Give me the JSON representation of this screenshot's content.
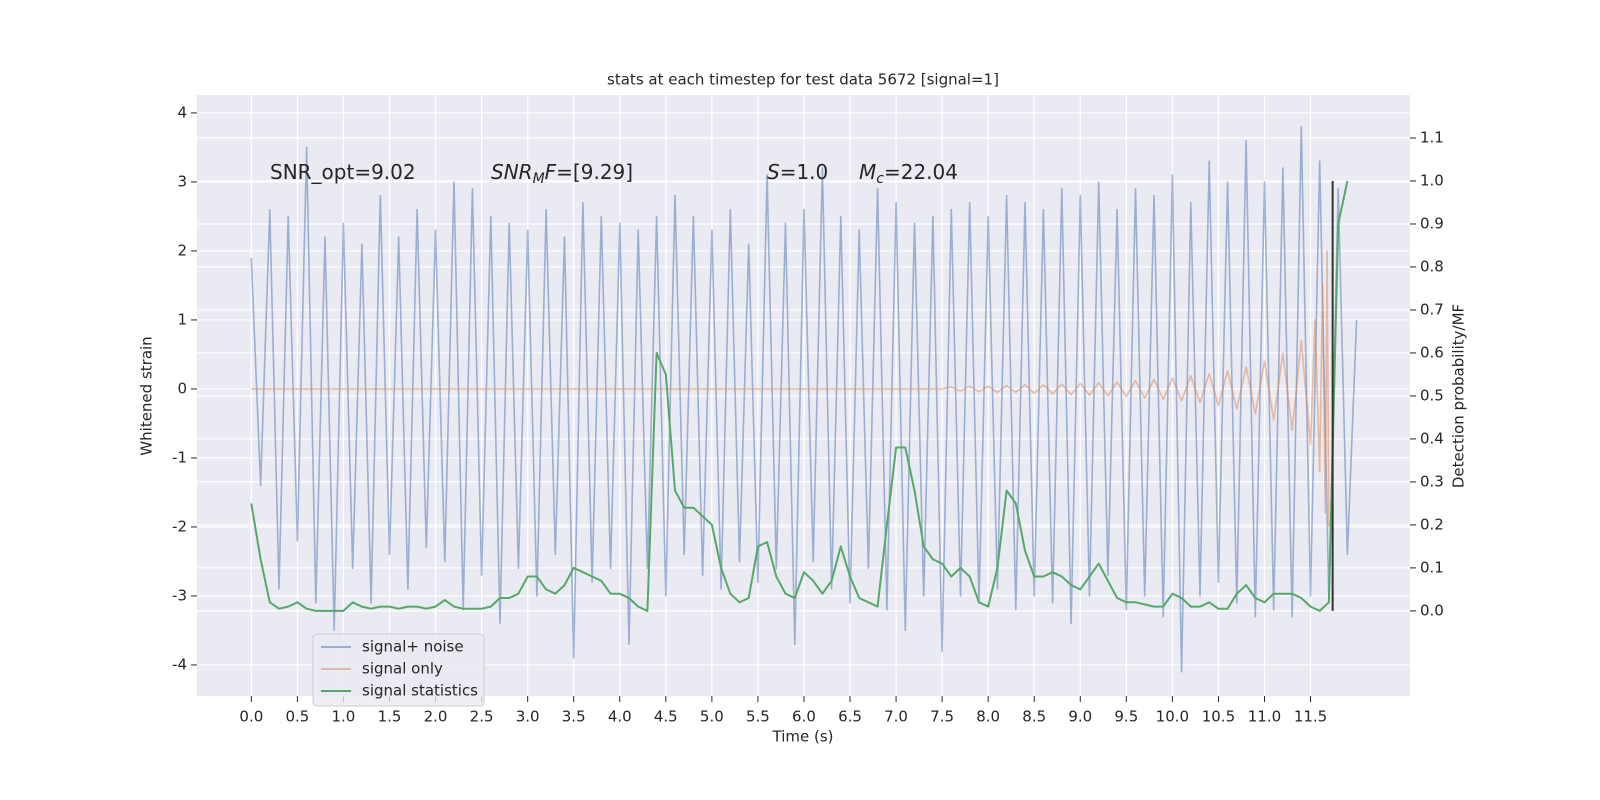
{
  "chart_data": {
    "type": "line",
    "title": "stats at each timestep for test data 5672 [signal=1]",
    "xlabel": "Time (s)",
    "ylabel": "Whitened strain",
    "y2label": "Detection probability/MF",
    "x": [
      0.0,
      0.1,
      0.2,
      0.3,
      0.4,
      0.5,
      0.6,
      0.7,
      0.8,
      0.9,
      1.0,
      1.1,
      1.2,
      1.3,
      1.4,
      1.5,
      1.6,
      1.7,
      1.8,
      1.9,
      2.0,
      2.1,
      2.2,
      2.3,
      2.4,
      2.5,
      2.6,
      2.7,
      2.8,
      2.9,
      3.0,
      3.1,
      3.2,
      3.3,
      3.4,
      3.5,
      3.6,
      3.7,
      3.8,
      3.9,
      4.0,
      4.1,
      4.2,
      4.3,
      4.4,
      4.5,
      4.6,
      4.7,
      4.8,
      4.9,
      5.0,
      5.1,
      5.2,
      5.3,
      5.4,
      5.5,
      5.6,
      5.7,
      5.8,
      5.9,
      6.0,
      6.1,
      6.2,
      6.3,
      6.4,
      6.5,
      6.6,
      6.7,
      6.8,
      6.9,
      7.0,
      7.1,
      7.2,
      7.3,
      7.4,
      7.5,
      7.6,
      7.7,
      7.8,
      7.9,
      8.0,
      8.1,
      8.2,
      8.3,
      8.4,
      8.5,
      8.6,
      8.7,
      8.8,
      8.9,
      9.0,
      9.1,
      9.2,
      9.3,
      9.4,
      9.5,
      9.6,
      9.7,
      9.8,
      9.9,
      10.0,
      10.1,
      10.2,
      10.3,
      10.4,
      10.5,
      10.6,
      10.7,
      10.8,
      10.9,
      11.0,
      11.1,
      11.2,
      11.3,
      11.4,
      11.5,
      11.6,
      11.7,
      11.8,
      11.9,
      12.0
    ],
    "series": [
      {
        "name": "signal+ noise",
        "color": "#4c72b0",
        "opacity": 0.5,
        "axis": "y",
        "values": [
          1.9,
          -1.4,
          2.6,
          -2.9,
          2.5,
          -2.2,
          3.5,
          -3.1,
          2.2,
          -3.5,
          2.4,
          -2.6,
          2.1,
          -3.1,
          2.8,
          -2.4,
          2.2,
          -2.9,
          2.6,
          -2.3,
          2.3,
          -2.5,
          3.0,
          -3.2,
          2.9,
          -2.7,
          2.5,
          -3.4,
          2.4,
          -2.6,
          2.3,
          -3.0,
          2.6,
          -2.4,
          2.2,
          -3.9,
          2.7,
          -2.8,
          2.5,
          -2.6,
          2.4,
          -3.7,
          2.3,
          -2.6,
          2.5,
          -3.0,
          2.8,
          -2.4,
          2.5,
          -2.7,
          2.3,
          -2.9,
          2.6,
          -2.5,
          2.1,
          -2.8,
          3.1,
          -2.6,
          2.4,
          -3.7,
          2.6,
          -2.5,
          3.2,
          -2.9,
          2.5,
          -3.1,
          2.3,
          -2.6,
          2.9,
          -3.2,
          2.7,
          -3.5,
          2.4,
          -3.0,
          2.5,
          -3.8,
          2.6,
          -3.0,
          2.7,
          -3.1,
          2.5,
          -2.9,
          2.8,
          -3.2,
          2.7,
          -3.0,
          2.6,
          -3.1,
          2.9,
          -3.4,
          2.8,
          -3.0,
          3.0,
          -2.7,
          2.6,
          -3.2,
          2.9,
          -3.0,
          2.8,
          -3.3,
          3.1,
          -4.1,
          2.7,
          -3.0,
          3.3,
          -2.8,
          3.0,
          -3.1,
          3.6,
          -3.3,
          3.0,
          -3.2,
          3.2,
          -3.3,
          3.8,
          -3.0,
          3.3,
          -3.1,
          2.9,
          -2.4,
          1.0
        ]
      },
      {
        "name": "signal only",
        "color": "#dd8452",
        "opacity": 0.5,
        "axis": "y",
        "x": [
          0.0,
          7.5,
          7.6,
          7.7,
          7.8,
          7.9,
          8.0,
          8.1,
          8.2,
          8.3,
          8.4,
          8.5,
          8.6,
          8.7,
          8.8,
          8.9,
          9.0,
          9.1,
          9.2,
          9.3,
          9.4,
          9.5,
          9.6,
          9.7,
          9.8,
          9.9,
          10.0,
          10.1,
          10.2,
          10.3,
          10.4,
          10.5,
          10.6,
          10.7,
          10.8,
          10.9,
          11.0,
          11.1,
          11.2,
          11.3,
          11.4,
          11.5,
          11.55,
          11.6,
          11.63,
          11.66,
          11.68,
          11.7
        ],
        "values": [
          0,
          0,
          0.03,
          -0.03,
          0.04,
          -0.04,
          0.04,
          -0.05,
          0.05,
          -0.05,
          0.06,
          -0.06,
          0.06,
          -0.07,
          0.07,
          -0.08,
          0.08,
          -0.09,
          0.09,
          -0.1,
          0.1,
          -0.11,
          0.12,
          -0.13,
          0.14,
          -0.15,
          0.16,
          -0.17,
          0.19,
          -0.2,
          0.22,
          -0.24,
          0.26,
          -0.29,
          0.32,
          -0.36,
          0.4,
          -0.45,
          0.52,
          -0.6,
          0.7,
          -0.8,
          1.0,
          -1.2,
          1.5,
          -1.8,
          2.0,
          -2.0
        ]
      },
      {
        "name": "signal statistics",
        "color": "#55a868",
        "opacity": 1,
        "axis": "y2",
        "x": [
          0.0,
          0.1,
          0.2,
          0.3,
          0.4,
          0.5,
          0.6,
          0.7,
          0.8,
          0.9,
          1.0,
          1.1,
          1.2,
          1.3,
          1.4,
          1.5,
          1.6,
          1.7,
          1.8,
          1.9,
          2.0,
          2.1,
          2.2,
          2.3,
          2.4,
          2.5,
          2.6,
          2.7,
          2.8,
          2.9,
          3.0,
          3.1,
          3.2,
          3.3,
          3.4,
          3.5,
          3.6,
          3.7,
          3.8,
          3.9,
          4.0,
          4.1,
          4.2,
          4.3,
          4.4,
          4.5,
          4.6,
          4.7,
          4.8,
          4.9,
          5.0,
          5.1,
          5.2,
          5.3,
          5.4,
          5.5,
          5.6,
          5.7,
          5.8,
          5.9,
          6.0,
          6.1,
          6.2,
          6.3,
          6.4,
          6.5,
          6.6,
          6.7,
          6.8,
          6.9,
          7.0,
          7.1,
          7.2,
          7.3,
          7.4,
          7.5,
          7.6,
          7.7,
          7.8,
          7.9,
          8.0,
          8.1,
          8.2,
          8.3,
          8.4,
          8.5,
          8.6,
          8.7,
          8.8,
          8.9,
          9.0,
          9.1,
          9.2,
          9.3,
          9.4,
          9.5,
          9.6,
          9.7,
          9.8,
          9.9,
          10.0,
          10.1,
          10.2,
          10.3,
          10.4,
          10.5,
          10.6,
          10.7,
          10.8,
          10.9,
          11.0,
          11.1,
          11.2,
          11.3,
          11.4,
          11.5,
          11.6,
          11.7,
          11.8,
          11.9
        ],
        "values": [
          0.25,
          0.12,
          0.02,
          0.005,
          0.01,
          0.02,
          0.005,
          0.0,
          0.0,
          0.0,
          0.0,
          0.02,
          0.01,
          0.005,
          0.01,
          0.01,
          0.005,
          0.01,
          0.01,
          0.005,
          0.01,
          0.025,
          0.01,
          0.005,
          0.005,
          0.005,
          0.01,
          0.03,
          0.03,
          0.04,
          0.08,
          0.08,
          0.05,
          0.04,
          0.06,
          0.1,
          0.09,
          0.08,
          0.07,
          0.04,
          0.04,
          0.03,
          0.01,
          0.0,
          0.6,
          0.55,
          0.28,
          0.24,
          0.24,
          0.22,
          0.2,
          0.1,
          0.04,
          0.02,
          0.03,
          0.15,
          0.16,
          0.08,
          0.04,
          0.03,
          0.09,
          0.07,
          0.04,
          0.07,
          0.15,
          0.08,
          0.03,
          0.02,
          0.01,
          0.2,
          0.38,
          0.38,
          0.28,
          0.15,
          0.12,
          0.11,
          0.08,
          0.1,
          0.08,
          0.02,
          0.01,
          0.1,
          0.28,
          0.25,
          0.14,
          0.08,
          0.08,
          0.09,
          0.08,
          0.06,
          0.05,
          0.08,
          0.11,
          0.07,
          0.03,
          0.02,
          0.02,
          0.015,
          0.01,
          0.01,
          0.04,
          0.03,
          0.01,
          0.01,
          0.02,
          0.005,
          0.005,
          0.04,
          0.06,
          0.03,
          0.02,
          0.04,
          0.04,
          0.04,
          0.03,
          0.01,
          0.0,
          0.02,
          0.9,
          1.0
        ]
      }
    ],
    "vline": {
      "x": 11.74,
      "y2": [
        0,
        1
      ],
      "color": "#333333"
    },
    "annotations": [
      {
        "parts": [
          {
            "text": "SNR_opt=9.02",
            "style": "normal"
          }
        ]
      },
      {
        "parts": [
          {
            "text": "SNR",
            "style": "italic"
          },
          {
            "text": "M",
            "style": "italic-sub"
          },
          {
            "text": "F",
            "style": "italic"
          },
          {
            "text": "=[9.29]",
            "style": "normal"
          }
        ]
      },
      {
        "parts": [
          {
            "text": "S",
            "style": "italic"
          },
          {
            "text": "=1.0",
            "style": "normal"
          }
        ]
      },
      {
        "parts": [
          {
            "text": "M",
            "style": "italic"
          },
          {
            "text": "c",
            "style": "italic-sub"
          },
          {
            "text": "=22.04",
            "style": "normal"
          }
        ]
      }
    ],
    "xlim": [
      -0.59,
      12.58
    ],
    "xticks": [
      {
        "value": 0,
        "label": "0.0"
      },
      0.5,
      {
        "value": 1,
        "label": "1.0"
      },
      1.5,
      {
        "value": 2,
        "label": "2.0"
      },
      2.5,
      {
        "value": 3,
        "label": "3.0"
      },
      3.5,
      {
        "value": 4,
        "label": "4.0"
      },
      4.5,
      {
        "value": 5,
        "label": "5.0"
      },
      5.5,
      {
        "value": 6,
        "label": "6.0"
      },
      6.5,
      {
        "value": 7,
        "label": "7.0"
      },
      7.5,
      {
        "value": 8,
        "label": "8.0"
      },
      8.5,
      {
        "value": 9,
        "label": "9.0"
      },
      9.5,
      {
        "value": 10,
        "label": "10.0"
      },
      10.5,
      {
        "value": 11,
        "label": "11.0"
      },
      11.5
    ],
    "ylim": [
      -4.45,
      4.26
    ],
    "yticks": [
      -4,
      -3,
      -2,
      -1,
      0,
      1,
      2,
      3,
      4
    ],
    "y2lim": [
      -0.198,
      1.2
    ],
    "y2ticks": [
      {
        "value": 0,
        "label": "0.0"
      },
      0.1,
      0.2,
      0.3,
      0.4,
      0.5,
      0.6,
      0.7,
      0.8,
      0.9,
      {
        "value": 1,
        "label": "1.0"
      },
      1.1
    ],
    "grid": true,
    "legend": "lower left",
    "background": "#eaeaf2"
  }
}
